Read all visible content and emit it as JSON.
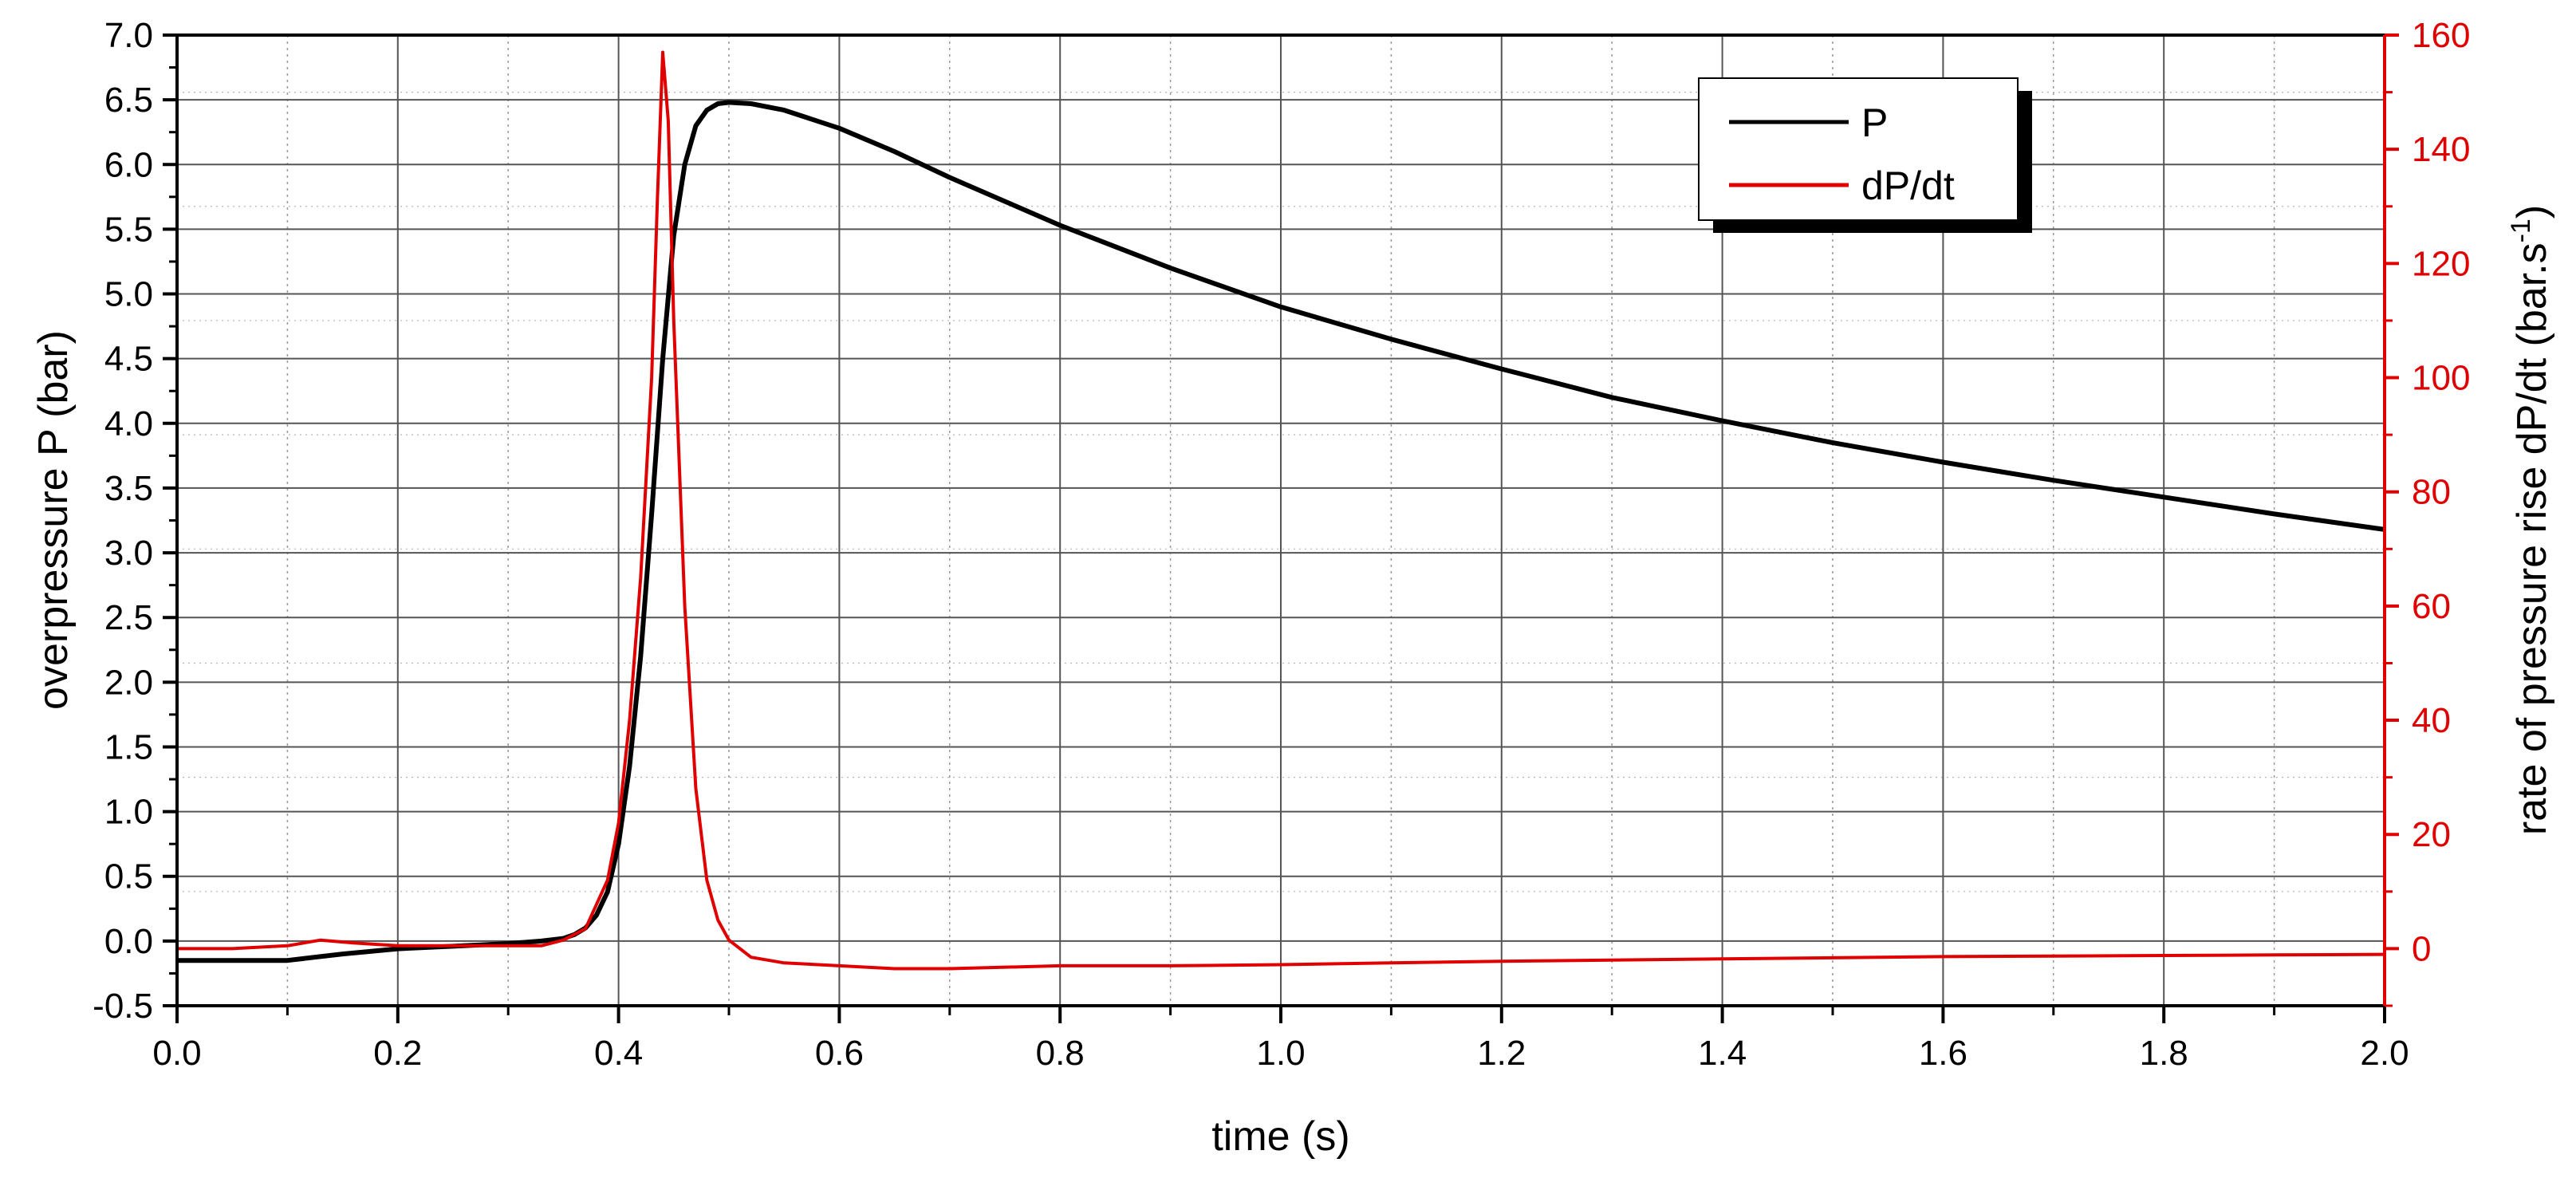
{
  "chart_data": {
    "type": "line",
    "xlabel": "time (s)",
    "ylabel_left": "overpressure P (bar)",
    "ylabel_right_main": "rate of pressure rise dP/dt (bar.s",
    "ylabel_right_sup": "-1",
    "ylabel_right_close": ")",
    "xlim": [
      0.0,
      2.0
    ],
    "ylim_left": [
      -0.5,
      7.0
    ],
    "ylim_right": [
      -10,
      160
    ],
    "x_ticks": [
      "0.0",
      "0.2",
      "0.4",
      "0.6",
      "0.8",
      "1.0",
      "1.2",
      "1.4",
      "1.6",
      "1.8",
      "2.0"
    ],
    "y_left_ticks": [
      "-0.5",
      "0.0",
      "0.5",
      "1.0",
      "1.5",
      "2.0",
      "2.5",
      "3.0",
      "3.5",
      "4.0",
      "4.5",
      "5.0",
      "5.5",
      "6.0",
      "6.5",
      "7.0"
    ],
    "y_right_ticks": [
      "0",
      "20",
      "40",
      "60",
      "80",
      "100",
      "120",
      "140",
      "160"
    ],
    "grid": true,
    "legend_position": "top-right",
    "series": [
      {
        "name": "P",
        "axis": "left",
        "color": "#000000",
        "x": [
          0.0,
          0.05,
          0.1,
          0.15,
          0.2,
          0.25,
          0.3,
          0.33,
          0.35,
          0.36,
          0.37,
          0.38,
          0.39,
          0.4,
          0.41,
          0.42,
          0.43,
          0.44,
          0.45,
          0.46,
          0.47,
          0.48,
          0.49,
          0.5,
          0.52,
          0.55,
          0.6,
          0.65,
          0.7,
          0.8,
          0.9,
          1.0,
          1.1,
          1.2,
          1.3,
          1.4,
          1.5,
          1.6,
          1.7,
          1.8,
          1.9,
          2.0
        ],
        "y": [
          -0.15,
          -0.15,
          -0.15,
          -0.1,
          -0.06,
          -0.04,
          -0.02,
          0.0,
          0.02,
          0.05,
          0.1,
          0.2,
          0.38,
          0.75,
          1.35,
          2.2,
          3.3,
          4.5,
          5.45,
          6.0,
          6.3,
          6.42,
          6.47,
          6.48,
          6.47,
          6.42,
          6.28,
          6.1,
          5.9,
          5.53,
          5.2,
          4.9,
          4.65,
          4.42,
          4.2,
          4.02,
          3.85,
          3.7,
          3.56,
          3.43,
          3.3,
          3.18
        ]
      },
      {
        "name": "dP/dt",
        "axis": "right",
        "color": "#e00000",
        "x": [
          0.0,
          0.05,
          0.1,
          0.13,
          0.16,
          0.2,
          0.25,
          0.3,
          0.33,
          0.35,
          0.37,
          0.39,
          0.4,
          0.41,
          0.42,
          0.43,
          0.435,
          0.44,
          0.445,
          0.45,
          0.46,
          0.47,
          0.48,
          0.49,
          0.5,
          0.52,
          0.55,
          0.6,
          0.65,
          0.7,
          0.8,
          0.9,
          1.0,
          1.1,
          1.2,
          1.3,
          1.4,
          1.5,
          1.6,
          1.7,
          1.8,
          1.9,
          2.0
        ],
        "y": [
          0,
          0,
          0.5,
          1.5,
          1.0,
          0.5,
          0.5,
          0.5,
          0.5,
          1.5,
          3.5,
          12,
          22,
          40,
          65,
          100,
          130,
          157,
          145,
          110,
          60,
          28,
          12,
          5,
          1.5,
          -1.5,
          -2.5,
          -3.0,
          -3.5,
          -3.5,
          -3.0,
          -3.0,
          -2.8,
          -2.5,
          -2.2,
          -2.0,
          -1.8,
          -1.6,
          -1.4,
          -1.3,
          -1.2,
          -1.1,
          -1.0
        ]
      }
    ]
  }
}
